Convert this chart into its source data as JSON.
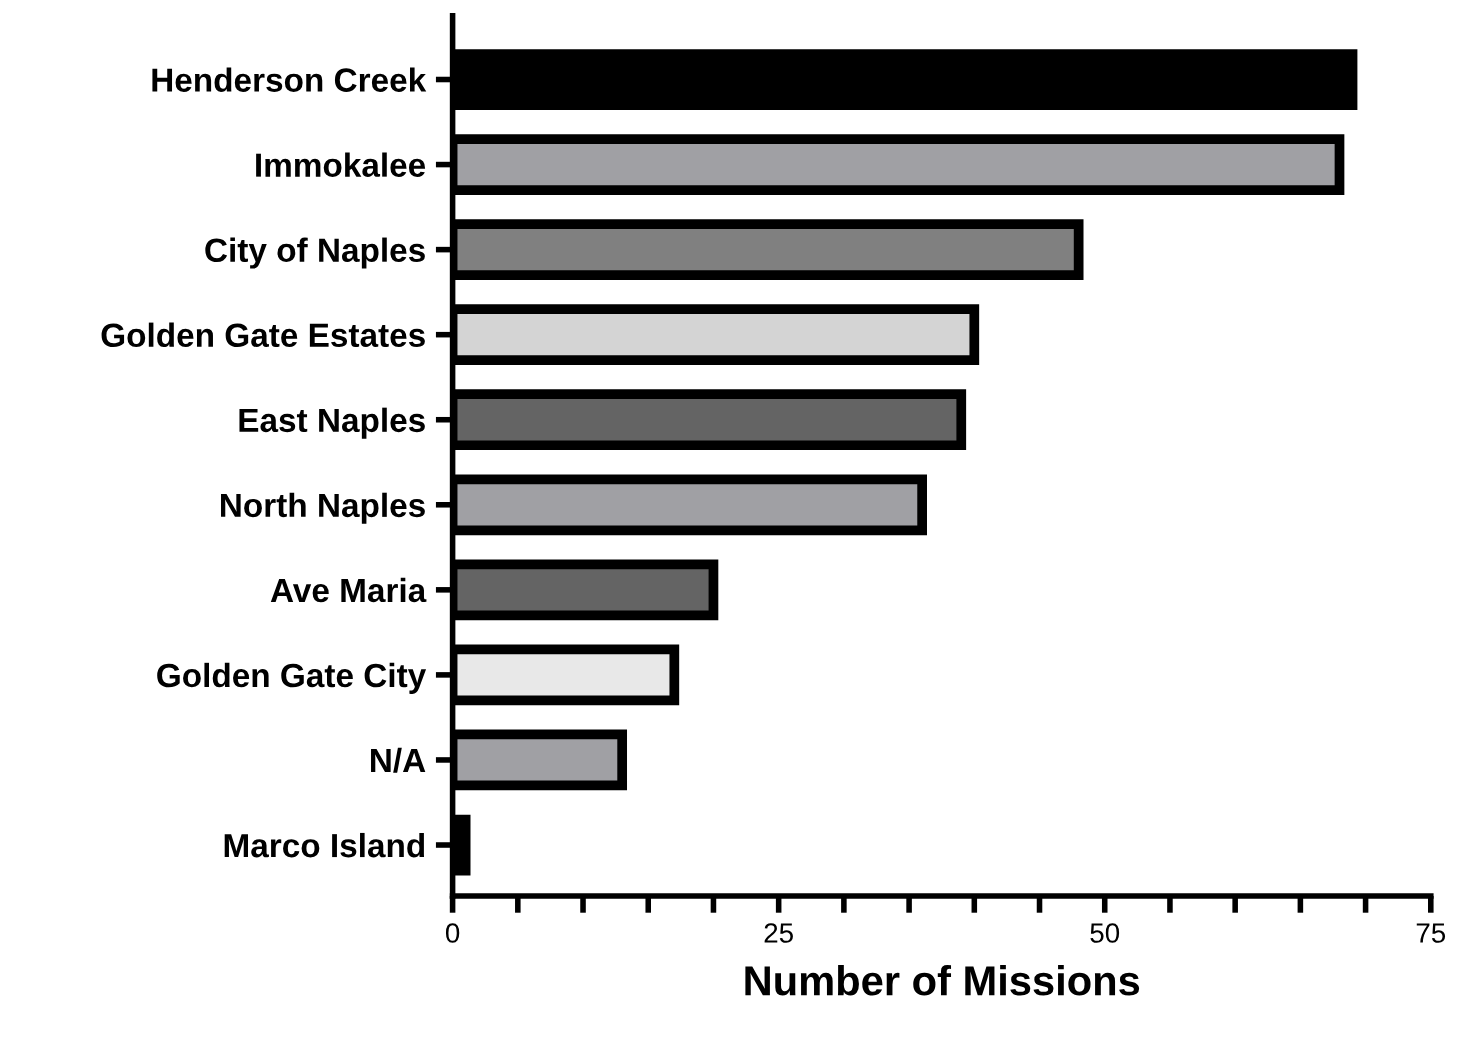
{
  "chart_data": {
    "type": "bar",
    "orientation": "horizontal",
    "xlabel": "Number of Missions",
    "categories": [
      "Henderson Creek",
      "Immokalee",
      "City of Naples",
      "Golden Gate Estates",
      "East Naples",
      "North Naples",
      "Ave Maria",
      "Golden Gate City",
      "N/A",
      "Marco Island"
    ],
    "values": [
      69,
      68,
      48,
      40,
      39,
      36,
      20,
      17,
      13,
      1
    ],
    "colors": [
      "#000000",
      "#a0a0a4",
      "#808080",
      "#d4d4d4",
      "#646464",
      "#a0a0a4",
      "#646464",
      "#e8e8e8",
      "#a0a0a4",
      "#000000"
    ],
    "xlim": [
      0,
      75
    ],
    "xticks": [
      0,
      {
        "value": 5,
        "label": null
      },
      {
        "value": 10,
        "label": null
      },
      {
        "value": 15,
        "label": null
      },
      {
        "value": 20,
        "label": null
      },
      25,
      {
        "value": 30,
        "label": null
      },
      {
        "value": 35,
        "label": null
      },
      {
        "value": 40,
        "label": null
      },
      {
        "value": 45,
        "label": null
      },
      50,
      {
        "value": 55,
        "label": null
      },
      {
        "value": 60,
        "label": null
      },
      {
        "value": 65,
        "label": null
      },
      {
        "value": 70,
        "label": null
      },
      75
    ],
    "grid": false
  }
}
